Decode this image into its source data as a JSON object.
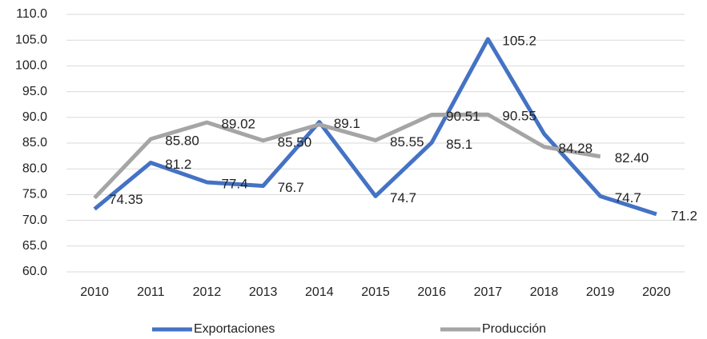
{
  "chart_data": {
    "type": "line",
    "categories": [
      "2010",
      "2011",
      "2012",
      "2013",
      "2014",
      "2015",
      "2016",
      "2017",
      "2018",
      "2019",
      "2020"
    ],
    "series": [
      {
        "name": "Exportaciones",
        "color": "#4472c4",
        "values": [
          72.2,
          81.2,
          77.4,
          76.7,
          89.1,
          74.7,
          85.1,
          105.2,
          86.8,
          74.7,
          71.2
        ],
        "value_labels": [
          null,
          "81.2",
          "77.4",
          "76.7",
          "89.1",
          "74.7",
          "85.1",
          "105.2",
          null,
          "74.7",
          "71.2"
        ]
      },
      {
        "name": "Producción",
        "color": "#a5a5a5",
        "values": [
          74.35,
          85.8,
          89.02,
          85.5,
          88.6,
          85.55,
          90.51,
          90.55,
          84.28,
          82.4,
          null
        ],
        "value_labels": [
          "74.35",
          "85.80",
          "89.02",
          "85.50",
          null,
          "85.55",
          "90.51",
          "90.55",
          "84.28",
          "82.40",
          null
        ]
      }
    ],
    "ylim": [
      60,
      110
    ],
    "yticks": [
      {
        "value": 60,
        "label": "60.0"
      },
      {
        "value": 65,
        "label": "65.0"
      },
      {
        "value": 70,
        "label": "70.0"
      },
      {
        "value": 75,
        "label": "75.0"
      },
      {
        "value": 80,
        "label": "80.0"
      },
      {
        "value": 85,
        "label": "85.0"
      },
      {
        "value": 90,
        "label": "90.0"
      },
      {
        "value": 95,
        "label": "95.0"
      },
      {
        "value": 100,
        "label": "100.0"
      },
      {
        "value": 105,
        "label": "105.0"
      },
      {
        "value": 110,
        "label": "110.0"
      }
    ],
    "grid": true,
    "legend": "bottom"
  }
}
